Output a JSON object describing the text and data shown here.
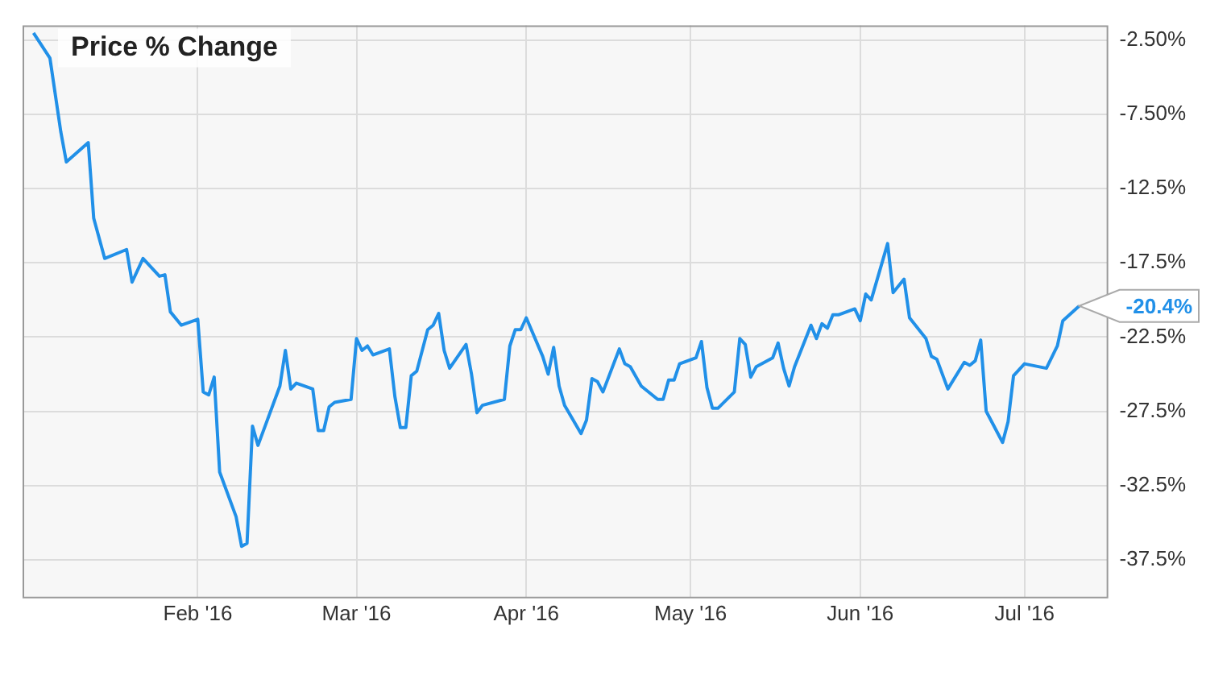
{
  "chart_data": {
    "type": "line",
    "title": "Price % Change",
    "x": [
      "2016-01-02",
      "2016-01-05",
      "2016-01-07",
      "2016-01-08",
      "2016-01-12",
      "2016-01-13",
      "2016-01-15",
      "2016-01-19",
      "2016-01-20",
      "2016-01-22",
      "2016-01-25",
      "2016-01-26",
      "2016-01-27",
      "2016-01-29",
      "2016-02-01",
      "2016-02-02",
      "2016-02-03",
      "2016-02-04",
      "2016-02-05",
      "2016-02-08",
      "2016-02-09",
      "2016-02-10",
      "2016-02-11",
      "2016-02-12",
      "2016-02-16",
      "2016-02-17",
      "2016-02-18",
      "2016-02-19",
      "2016-02-22",
      "2016-02-23",
      "2016-02-24",
      "2016-02-25",
      "2016-02-26",
      "2016-02-29",
      "2016-03-01",
      "2016-03-02",
      "2016-03-03",
      "2016-03-04",
      "2016-03-07",
      "2016-03-08",
      "2016-03-09",
      "2016-03-10",
      "2016-03-11",
      "2016-03-12",
      "2016-03-14",
      "2016-03-15",
      "2016-03-16",
      "2016-03-17",
      "2016-03-18",
      "2016-03-21",
      "2016-03-22",
      "2016-03-23",
      "2016-03-24",
      "2016-03-28",
      "2016-03-29",
      "2016-03-30",
      "2016-03-31",
      "2016-04-01",
      "2016-04-04",
      "2016-04-05",
      "2016-04-06",
      "2016-04-07",
      "2016-04-08",
      "2016-04-11",
      "2016-04-12",
      "2016-04-13",
      "2016-04-14",
      "2016-04-15",
      "2016-04-18",
      "2016-04-19",
      "2016-04-20",
      "2016-04-22",
      "2016-04-25",
      "2016-04-26",
      "2016-04-27",
      "2016-04-28",
      "2016-04-29",
      "2016-05-02",
      "2016-05-03",
      "2016-05-04",
      "2016-05-05",
      "2016-05-06",
      "2016-05-09",
      "2016-05-10",
      "2016-05-11",
      "2016-05-12",
      "2016-05-13",
      "2016-05-16",
      "2016-05-17",
      "2016-05-18",
      "2016-05-19",
      "2016-05-20",
      "2016-05-23",
      "2016-05-24",
      "2016-05-25",
      "2016-05-26",
      "2016-05-27",
      "2016-05-28",
      "2016-05-31",
      "2016-06-01",
      "2016-06-02",
      "2016-06-03",
      "2016-06-06",
      "2016-06-07",
      "2016-06-09",
      "2016-06-10",
      "2016-06-13",
      "2016-06-14",
      "2016-06-15",
      "2016-06-17",
      "2016-06-20",
      "2016-06-21",
      "2016-06-22",
      "2016-06-23",
      "2016-06-24",
      "2016-06-27",
      "2016-06-28",
      "2016-06-29",
      "2016-07-01",
      "2016-07-05",
      "2016-07-07",
      "2016-07-08",
      "2016-07-11"
    ],
    "series": [
      {
        "color": "#2190e8",
        "values": [
          -2.0,
          -3.7,
          -8.7,
          -10.7,
          -9.4,
          -14.5,
          -17.2,
          -16.6,
          -18.8,
          -17.2,
          -18.4,
          -18.3,
          -20.8,
          -21.7,
          -21.3,
          -26.2,
          -26.4,
          -25.2,
          -31.6,
          -34.6,
          -36.6,
          -36.4,
          -28.5,
          -29.8,
          -25.8,
          -23.4,
          -26.0,
          -25.6,
          -26.0,
          -28.8,
          -28.8,
          -27.2,
          -26.9,
          -26.7,
          -22.6,
          -23.4,
          -23.1,
          -23.7,
          -23.3,
          -26.5,
          -28.6,
          -28.6,
          -25.1,
          -24.8,
          -22.0,
          -21.7,
          -20.9,
          -23.4,
          -24.6,
          -23.0,
          -25.0,
          -27.6,
          -27.1,
          -26.7,
          -23.1,
          -22.0,
          -22.0,
          -21.2,
          -23.8,
          -25.0,
          -23.2,
          -25.8,
          -27.1,
          -29.0,
          -28.1,
          -25.3,
          -25.5,
          -26.2,
          -23.3,
          -24.3,
          -24.5,
          -25.8,
          -26.7,
          -26.7,
          -25.4,
          -25.4,
          -24.3,
          -23.9,
          -22.8,
          -25.9,
          -27.3,
          -27.3,
          -26.2,
          -22.6,
          -23.0,
          -25.2,
          -24.5,
          -23.9,
          -22.9,
          -24.6,
          -25.8,
          -24.5,
          -21.7,
          -22.6,
          -21.6,
          -21.9,
          -21.0,
          -21.0,
          -20.6,
          -21.4,
          -19.6,
          -20.0,
          -16.2,
          -19.5,
          -18.6,
          -21.2,
          -22.6,
          -23.8,
          -24.0,
          -26.0,
          -24.2,
          -24.4,
          -24.1,
          -22.7,
          -27.5,
          -29.6,
          -28.2,
          -25.1,
          -24.3,
          -24.6,
          -23.1,
          -21.4,
          -20.4
        ]
      }
    ],
    "annotations": [
      {
        "text": "-20.4%",
        "x": "2016-07-11",
        "y": -20.4
      }
    ],
    "xlim": [
      "2015-12-31",
      "2016-07-16"
    ],
    "xticks": [
      {
        "value": "2016-02-01",
        "label": "Feb '16"
      },
      {
        "value": "2016-03-01",
        "label": "Mar '16"
      },
      {
        "value": "2016-04-01",
        "label": "Apr '16"
      },
      {
        "value": "2016-05-01",
        "label": "May '16"
      },
      {
        "value": "2016-06-01",
        "label": "Jun '16"
      },
      {
        "value": "2016-07-01",
        "label": "Jul '16"
      }
    ],
    "ylim": [
      -40,
      -1.5
    ],
    "yticks": [
      {
        "value": -2.5,
        "label": "-2.50%"
      },
      {
        "value": -7.5,
        "label": "-7.50%"
      },
      {
        "value": -12.5,
        "label": "-12.5%"
      },
      {
        "value": -17.5,
        "label": "-17.5%"
      },
      {
        "value": -22.5,
        "label": "-22.5%"
      },
      {
        "value": -27.5,
        "label": "-27.5%"
      },
      {
        "value": -32.5,
        "label": "-32.5%"
      },
      {
        "value": -37.5,
        "label": "-37.5%"
      }
    ],
    "grid": true,
    "marker": "none",
    "line_style": "solid",
    "legend": false
  }
}
